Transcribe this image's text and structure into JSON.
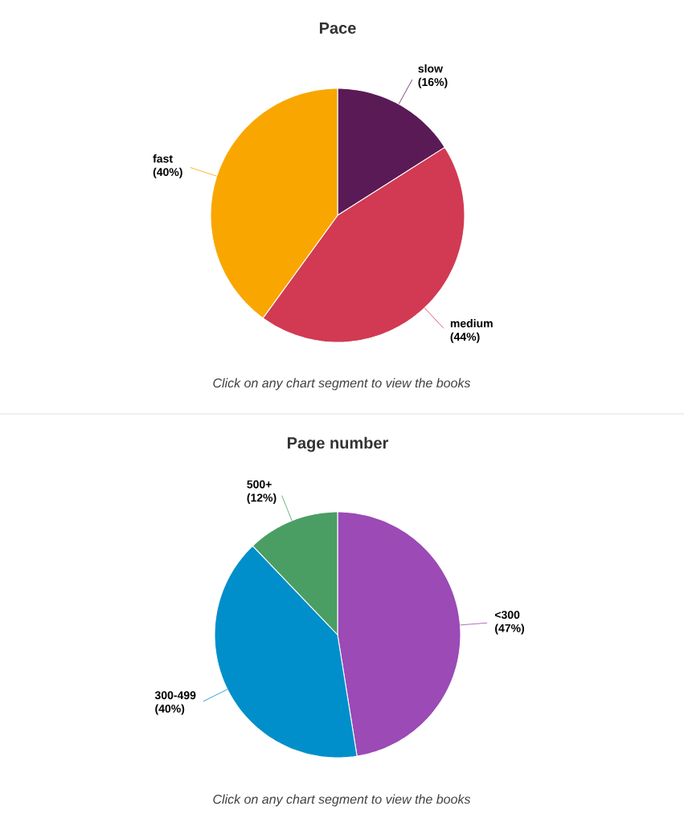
{
  "chart_data": [
    {
      "type": "pie",
      "title": "Pace",
      "categories": [
        "slow",
        "medium",
        "fast"
      ],
      "values": [
        16,
        44,
        40
      ],
      "colors": [
        "#5a1a56",
        "#d13a52",
        "#f9a600"
      ],
      "value_labels": [
        "(16%)",
        "(44%)",
        "(40%)"
      ],
      "annotations": [
        "Click on any chart segment to view the books"
      ]
    },
    {
      "type": "pie",
      "title": "Page number",
      "categories": [
        "<300",
        "300-499",
        "500+"
      ],
      "values": [
        47,
        40,
        12
      ],
      "colors": [
        "#9b4ab6",
        "#008fca",
        "#4a9e63"
      ],
      "value_labels": [
        "(47%)",
        "(40%)",
        "(12%)"
      ],
      "annotations": [
        "Click on any chart segment to view the books"
      ]
    }
  ]
}
